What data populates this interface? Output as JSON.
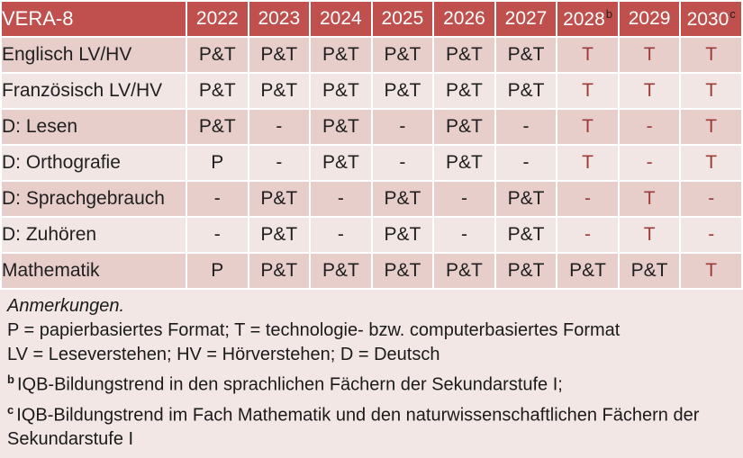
{
  "colors": {
    "header_bg": "#C0504D",
    "header_text": "#FFFFFF",
    "band_dark": "#E7CECB",
    "band_light": "#F2E6E4",
    "notes_bg": "#F2E7E5",
    "tech_text": "#9E3B38",
    "grid_line": "#FFFFFF"
  },
  "table": {
    "title": "VERA-8",
    "columns": [
      {
        "text": "2022",
        "sup": ""
      },
      {
        "text": "2023",
        "sup": ""
      },
      {
        "text": "2024",
        "sup": ""
      },
      {
        "text": "2025",
        "sup": ""
      },
      {
        "text": "2026",
        "sup": ""
      },
      {
        "text": "2027",
        "sup": ""
      },
      {
        "text": "2028",
        "sup": "b"
      },
      {
        "text": "2029",
        "sup": ""
      },
      {
        "text": "2030",
        "sup": "c"
      }
    ],
    "rows": [
      {
        "label": "Englisch LV/HV",
        "values": [
          {
            "text": "P&T",
            "tech": false
          },
          {
            "text": "P&T",
            "tech": false
          },
          {
            "text": "P&T",
            "tech": false
          },
          {
            "text": "P&T",
            "tech": false
          },
          {
            "text": "P&T",
            "tech": false
          },
          {
            "text": "P&T",
            "tech": false
          },
          {
            "text": "T",
            "tech": true
          },
          {
            "text": "T",
            "tech": true
          },
          {
            "text": "T",
            "tech": true
          }
        ]
      },
      {
        "label": "Französisch LV/HV",
        "values": [
          {
            "text": "P&T",
            "tech": false
          },
          {
            "text": "P&T",
            "tech": false
          },
          {
            "text": "P&T",
            "tech": false
          },
          {
            "text": "P&T",
            "tech": false
          },
          {
            "text": "P&T",
            "tech": false
          },
          {
            "text": "P&T",
            "tech": false
          },
          {
            "text": "T",
            "tech": true
          },
          {
            "text": "T",
            "tech": true
          },
          {
            "text": "T",
            "tech": true
          }
        ]
      },
      {
        "label": "D: Lesen",
        "values": [
          {
            "text": "P&T",
            "tech": false
          },
          {
            "text": "-",
            "tech": false
          },
          {
            "text": "P&T",
            "tech": false
          },
          {
            "text": "-",
            "tech": false
          },
          {
            "text": "P&T",
            "tech": false
          },
          {
            "text": "-",
            "tech": false
          },
          {
            "text": "T",
            "tech": true
          },
          {
            "text": "-",
            "tech": true
          },
          {
            "text": "T",
            "tech": true
          }
        ]
      },
      {
        "label": "D: Orthografie",
        "values": [
          {
            "text": "P",
            "tech": false
          },
          {
            "text": "-",
            "tech": false
          },
          {
            "text": "P&T",
            "tech": false
          },
          {
            "text": "-",
            "tech": false
          },
          {
            "text": "P&T",
            "tech": false
          },
          {
            "text": "-",
            "tech": false
          },
          {
            "text": "T",
            "tech": true
          },
          {
            "text": "-",
            "tech": true
          },
          {
            "text": "T",
            "tech": true
          }
        ]
      },
      {
        "label": "D: Sprachgebrauch",
        "values": [
          {
            "text": "-",
            "tech": false
          },
          {
            "text": "P&T",
            "tech": false
          },
          {
            "text": "-",
            "tech": false
          },
          {
            "text": "P&T",
            "tech": false
          },
          {
            "text": "-",
            "tech": false
          },
          {
            "text": "P&T",
            "tech": false
          },
          {
            "text": "-",
            "tech": true
          },
          {
            "text": "T",
            "tech": true
          },
          {
            "text": "-",
            "tech": true
          }
        ]
      },
      {
        "label": "D: Zuhören",
        "values": [
          {
            "text": "-",
            "tech": false
          },
          {
            "text": "P&T",
            "tech": false
          },
          {
            "text": "-",
            "tech": false
          },
          {
            "text": "P&T",
            "tech": false
          },
          {
            "text": "-",
            "tech": false
          },
          {
            "text": "P&T",
            "tech": false
          },
          {
            "text": "-",
            "tech": true
          },
          {
            "text": "T",
            "tech": true
          },
          {
            "text": "-",
            "tech": true
          }
        ]
      },
      {
        "label": "Mathematik",
        "values": [
          {
            "text": "P",
            "tech": false
          },
          {
            "text": "P&T",
            "tech": false
          },
          {
            "text": "P&T",
            "tech": false
          },
          {
            "text": "P&T",
            "tech": false
          },
          {
            "text": "P&T",
            "tech": false
          },
          {
            "text": "P&T",
            "tech": false
          },
          {
            "text": "P&T",
            "tech": false
          },
          {
            "text": "P&T",
            "tech": false
          },
          {
            "text": "T",
            "tech": true
          }
        ]
      }
    ]
  },
  "footnotes": {
    "heading": "Anmerkungen.",
    "lines": [
      {
        "sup": "",
        "text": "P = papierbasiertes Format; T = technologie- bzw. computerbasiertes Format"
      },
      {
        "sup": "",
        "text": "LV = Leseverstehen; HV = Hörverstehen; D = Deutsch"
      },
      {
        "sup": "b",
        "text": "IQB-Bildungstrend in den sprachlichen Fächern der Sekundarstufe I;"
      },
      {
        "sup": "c",
        "text": "IQB-Bildungstrend im Fach Mathematik und den naturwissenschaftlichen Fächern der Sekundarstufe I"
      }
    ]
  }
}
